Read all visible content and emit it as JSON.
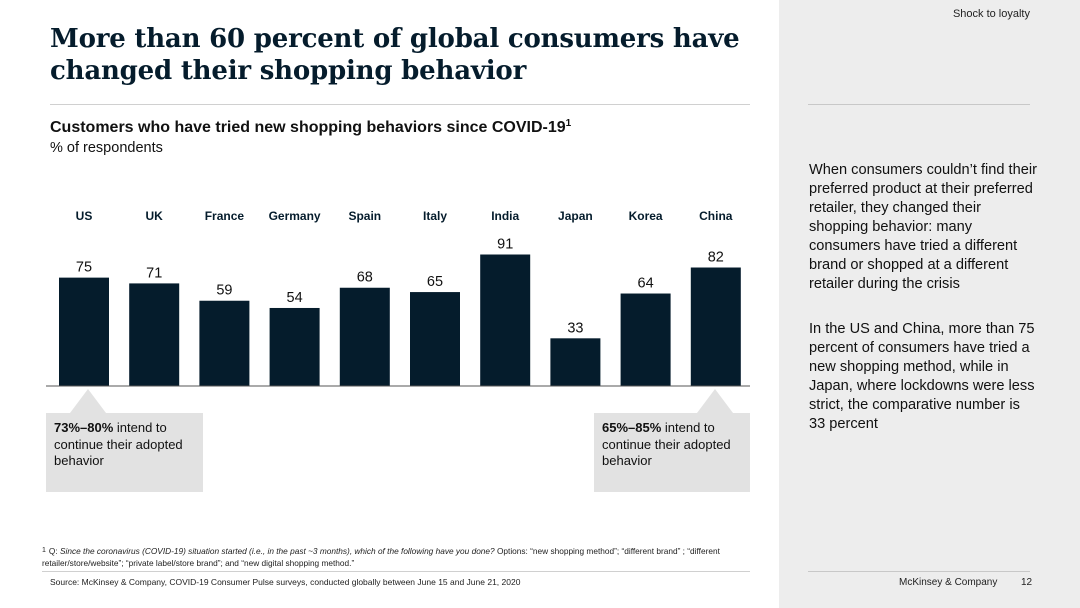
{
  "header": {
    "section_label": "Shock to loyalty",
    "title": "More than 60 percent of global consumers have changed their shopping behavior"
  },
  "chart_header": {
    "subtitle": "Customers who have tried new shopping behaviors since COVID-19",
    "subtitle_footnote_mark": "1",
    "unit": "% of respondents"
  },
  "chart_data": {
    "type": "bar",
    "title": "Customers who have tried new shopping behaviors since COVID-19",
    "ylabel": "% of respondents",
    "xlabel": "",
    "categories": [
      "US",
      "UK",
      "France",
      "Germany",
      "Spain",
      "Italy",
      "India",
      "Japan",
      "Korea",
      "China"
    ],
    "values": [
      75,
      71,
      59,
      54,
      68,
      65,
      91,
      33,
      64,
      82
    ],
    "ylim": [
      0,
      100
    ],
    "grid": false,
    "bar_color": "#051c2c"
  },
  "callouts": {
    "left": {
      "bold": "73%–80%",
      "text": " intend to continue their adopted behavior"
    },
    "right": {
      "bold": "65%–85%",
      "text": " intend to continue their adopted behavior"
    }
  },
  "side_panel": {
    "paragraph_1": "When consumers couldn’t find their preferred product at their preferred retailer, they changed their shopping behavior: many consumers have tried a different brand or shopped at a different retailer during the crisis",
    "paragraph_2": "In the US and China, more than 75 percent of consumers have tried a new shopping method, while in Japan, where lockdowns were less strict, the comparative number is 33 percent"
  },
  "footnote": {
    "mark": "1",
    "question_prefix": "Q: ",
    "question_italic": "Since the coronavirus (COVID-19) situation started (i.e., in the past ~3 months), which of the following have you done?",
    "options": " Options: “new shopping method”; “different brand” ; “different retailer/store/website”; “private label/store brand”; and “new digital shopping method.”"
  },
  "footer": {
    "source": "Source: McKinsey & Company, COVID-19 Consumer Pulse surveys, conducted globally between June 15 and June 21, 2020",
    "brand": "McKinsey & Company",
    "page_number": "12"
  },
  "colors": {
    "navy": "#051c2c",
    "panel_gray": "#ededed",
    "callout_gray": "#e2e2e2"
  }
}
